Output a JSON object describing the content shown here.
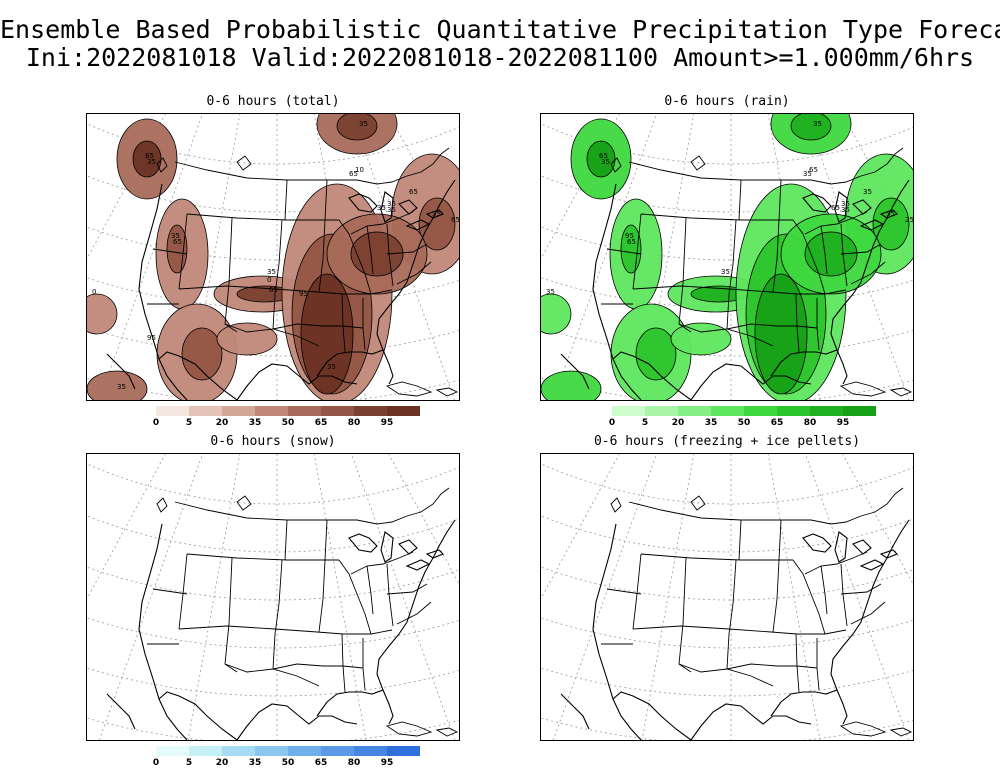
{
  "figure": {
    "title_line1": "Ensemble Based Probabilistic Quantitative Precipitation Type Forecast",
    "title_line2": "Ini:2022081018 Valid:2022081018-2022081100 Amount>=1.000mm/6hrs"
  },
  "panels": [
    {
      "title": "0-6 hours (total)",
      "palette": "brown",
      "contour_labels": [
        "65",
        "35",
        "35",
        "10",
        "65",
        "35",
        "35",
        "35",
        "65",
        "35",
        "65",
        "0",
        "35",
        "65",
        "35",
        "0",
        "65",
        "95",
        "35",
        "95",
        "35"
      ]
    },
    {
      "title": "0-6 hours (rain)",
      "palette": "green",
      "contour_labels": [
        "65",
        "35",
        "35",
        "65",
        "35",
        "35",
        "35",
        "65",
        "35",
        "35",
        "25",
        "35",
        "95",
        "65",
        "35"
      ]
    },
    {
      "title": "0-6 hours (snow)",
      "palette": "blue",
      "contour_labels": []
    },
    {
      "title": "0-6 hours (freezing + ice pellets)",
      "palette": "none",
      "contour_labels": []
    }
  ],
  "colorbars": {
    "tick_labels": [
      "0",
      "5",
      "20",
      "35",
      "50",
      "65",
      "80",
      "95"
    ],
    "brown": [
      "#f4e6e1",
      "#e4c4b8",
      "#d4a898",
      "#c08878",
      "#a86a5a",
      "#935545",
      "#7a4030",
      "#6a3324"
    ],
    "green": [
      "#cdfccd",
      "#a8f5a8",
      "#85ee85",
      "#5ee65e",
      "#3fd83f",
      "#2cc42c",
      "#1fb01f",
      "#16a016"
    ],
    "blue": [
      "#e6fcfc",
      "#c4f0f6",
      "#a6dcf2",
      "#8ac6ee",
      "#6fb0ea",
      "#5a9ae6",
      "#4686e2",
      "#2f70dc"
    ]
  }
}
